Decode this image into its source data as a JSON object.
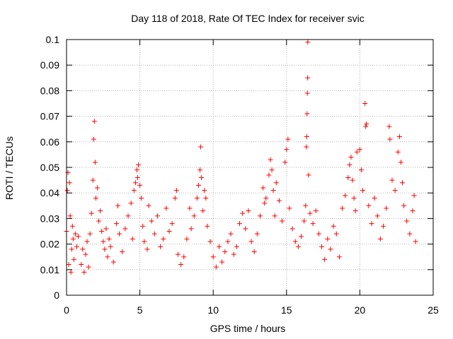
{
  "chart_data": {
    "type": "scatter",
    "title": "Day 118 of 2018, Rate Of TEC Index for receiver svic",
    "xlabel": "GPS time / hours",
    "ylabel": "ROTI / TECUs",
    "xlim": [
      0,
      25
    ],
    "ylim": [
      0,
      0.1
    ],
    "x_ticks": [
      0,
      5,
      10,
      15,
      20,
      25
    ],
    "y_ticks": [
      0,
      0.01,
      0.02,
      0.03,
      0.04,
      0.05,
      0.06,
      0.07,
      0.08,
      0.09,
      0.1
    ],
    "x_tick_labels": [
      "0",
      "5",
      "10",
      "15",
      "20",
      "25"
    ],
    "y_tick_labels": [
      "0",
      "0.01",
      "0.02",
      "0.03",
      "0.04",
      "0.05",
      "0.06",
      "0.07",
      "0.08",
      "0.09",
      "0.1"
    ],
    "grid": true,
    "marker": "+",
    "series_color": "#ff0000",
    "series": [
      {
        "name": "ROTI",
        "points": [
          [
            0.0,
            0.025
          ],
          [
            0.05,
            0.041
          ],
          [
            0.1,
            0.048
          ],
          [
            0.15,
            0.012
          ],
          [
            0.2,
            0.044
          ],
          [
            0.25,
            0.031
          ],
          [
            0.3,
            0.009
          ],
          [
            0.35,
            0.018
          ],
          [
            0.4,
            0.027
          ],
          [
            0.45,
            0.022
          ],
          [
            0.5,
            0.014
          ],
          [
            0.6,
            0.024
          ],
          [
            0.7,
            0.019
          ],
          [
            0.8,
            0.023
          ],
          [
            1.0,
            0.012
          ],
          [
            1.1,
            0.018
          ],
          [
            1.2,
            0.009
          ],
          [
            1.3,
            0.016
          ],
          [
            1.4,
            0.021
          ],
          [
            1.5,
            0.011
          ],
          [
            1.6,
            0.024
          ],
          [
            1.7,
            0.032
          ],
          [
            1.8,
            0.045
          ],
          [
            1.85,
            0.061
          ],
          [
            1.9,
            0.068
          ],
          [
            1.95,
            0.052
          ],
          [
            2.0,
            0.038
          ],
          [
            2.1,
            0.042
          ],
          [
            2.2,
            0.029
          ],
          [
            2.3,
            0.033
          ],
          [
            2.4,
            0.025
          ],
          [
            2.5,
            0.021
          ],
          [
            2.6,
            0.018
          ],
          [
            2.7,
            0.026
          ],
          [
            2.8,
            0.015
          ],
          [
            2.9,
            0.022
          ],
          [
            3.0,
            0.019
          ],
          [
            3.2,
            0.013
          ],
          [
            3.4,
            0.028
          ],
          [
            3.5,
            0.035
          ],
          [
            3.6,
            0.024
          ],
          [
            3.8,
            0.017
          ],
          [
            4.0,
            0.026
          ],
          [
            4.2,
            0.031
          ],
          [
            4.4,
            0.036
          ],
          [
            4.5,
            0.022
          ],
          [
            4.6,
            0.041
          ],
          [
            4.7,
            0.044
          ],
          [
            4.8,
            0.049
          ],
          [
            4.85,
            0.046
          ],
          [
            4.9,
            0.051
          ],
          [
            5.0,
            0.043
          ],
          [
            5.1,
            0.038
          ],
          [
            5.2,
            0.027
          ],
          [
            5.3,
            0.021
          ],
          [
            5.5,
            0.018
          ],
          [
            5.6,
            0.035
          ],
          [
            5.8,
            0.029
          ],
          [
            6.0,
            0.024
          ],
          [
            6.2,
            0.031
          ],
          [
            6.4,
            0.019
          ],
          [
            6.6,
            0.022
          ],
          [
            6.8,
            0.034
          ],
          [
            7.0,
            0.025
          ],
          [
            7.2,
            0.028
          ],
          [
            7.4,
            0.038
          ],
          [
            7.5,
            0.041
          ],
          [
            7.6,
            0.016
          ],
          [
            7.8,
            0.012
          ],
          [
            8.0,
            0.015
          ],
          [
            8.2,
            0.022
          ],
          [
            8.4,
            0.034
          ],
          [
            8.5,
            0.026
          ],
          [
            8.7,
            0.031
          ],
          [
            8.9,
            0.038
          ],
          [
            9.0,
            0.043
          ],
          [
            9.1,
            0.049
          ],
          [
            9.15,
            0.058
          ],
          [
            9.2,
            0.046
          ],
          [
            9.3,
            0.033
          ],
          [
            9.4,
            0.041
          ],
          [
            9.5,
            0.038
          ],
          [
            9.6,
            0.027
          ],
          [
            9.8,
            0.021
          ],
          [
            10.0,
            0.015
          ],
          [
            10.2,
            0.011
          ],
          [
            10.4,
            0.019
          ],
          [
            10.6,
            0.013
          ],
          [
            10.8,
            0.017
          ],
          [
            11.0,
            0.021
          ],
          [
            11.2,
            0.024
          ],
          [
            11.4,
            0.016
          ],
          [
            11.6,
            0.019
          ],
          [
            11.8,
            0.028
          ],
          [
            12.0,
            0.032
          ],
          [
            12.2,
            0.026
          ],
          [
            12.4,
            0.033
          ],
          [
            12.6,
            0.021
          ],
          [
            12.8,
            0.017
          ],
          [
            13.0,
            0.024
          ],
          [
            13.2,
            0.031
          ],
          [
            13.4,
            0.042
          ],
          [
            13.5,
            0.036
          ],
          [
            13.6,
            0.038
          ],
          [
            13.8,
            0.047
          ],
          [
            13.9,
            0.053
          ],
          [
            14.0,
            0.049
          ],
          [
            14.1,
            0.041
          ],
          [
            14.2,
            0.031
          ],
          [
            14.3,
            0.044
          ],
          [
            14.5,
            0.037
          ],
          [
            14.7,
            0.029
          ],
          [
            14.9,
            0.052
          ],
          [
            15.0,
            0.057
          ],
          [
            15.1,
            0.061
          ],
          [
            15.2,
            0.034
          ],
          [
            15.4,
            0.026
          ],
          [
            15.6,
            0.021
          ],
          [
            15.8,
            0.019
          ],
          [
            16.0,
            0.023
          ],
          [
            16.2,
            0.029
          ],
          [
            16.3,
            0.035
          ],
          [
            16.35,
            0.058
          ],
          [
            16.38,
            0.062
          ],
          [
            16.4,
            0.071
          ],
          [
            16.42,
            0.079
          ],
          [
            16.44,
            0.085
          ],
          [
            16.45,
            0.099
          ],
          [
            16.5,
            0.047
          ],
          [
            16.6,
            0.032
          ],
          [
            16.8,
            0.028
          ],
          [
            17.0,
            0.033
          ],
          [
            17.2,
            0.024
          ],
          [
            17.4,
            0.019
          ],
          [
            17.6,
            0.014
          ],
          [
            17.8,
            0.022
          ],
          [
            18.0,
            0.018
          ],
          [
            18.2,
            0.027
          ],
          [
            18.4,
            0.024
          ],
          [
            18.6,
            0.015
          ],
          [
            18.8,
            0.034
          ],
          [
            19.0,
            0.039
          ],
          [
            19.2,
            0.046
          ],
          [
            19.3,
            0.051
          ],
          [
            19.4,
            0.054
          ],
          [
            19.5,
            0.045
          ],
          [
            19.6,
            0.038
          ],
          [
            19.7,
            0.033
          ],
          [
            19.8,
            0.056
          ],
          [
            20.0,
            0.057
          ],
          [
            20.1,
            0.049
          ],
          [
            20.2,
            0.041
          ],
          [
            20.35,
            0.075
          ],
          [
            20.4,
            0.066
          ],
          [
            20.45,
            0.067
          ],
          [
            20.6,
            0.035
          ],
          [
            20.8,
            0.028
          ],
          [
            21.0,
            0.038
          ],
          [
            21.2,
            0.031
          ],
          [
            21.4,
            0.022
          ],
          [
            21.6,
            0.027
          ],
          [
            21.8,
            0.034
          ],
          [
            22.0,
            0.066
          ],
          [
            22.05,
            0.061
          ],
          [
            22.2,
            0.045
          ],
          [
            22.4,
            0.041
          ],
          [
            22.6,
            0.056
          ],
          [
            22.7,
            0.062
          ],
          [
            22.8,
            0.052
          ],
          [
            22.9,
            0.044
          ],
          [
            23.0,
            0.035
          ],
          [
            23.2,
            0.029
          ],
          [
            23.4,
            0.024
          ],
          [
            23.6,
            0.033
          ],
          [
            23.7,
            0.039
          ],
          [
            23.8,
            0.021
          ]
        ]
      }
    ]
  }
}
